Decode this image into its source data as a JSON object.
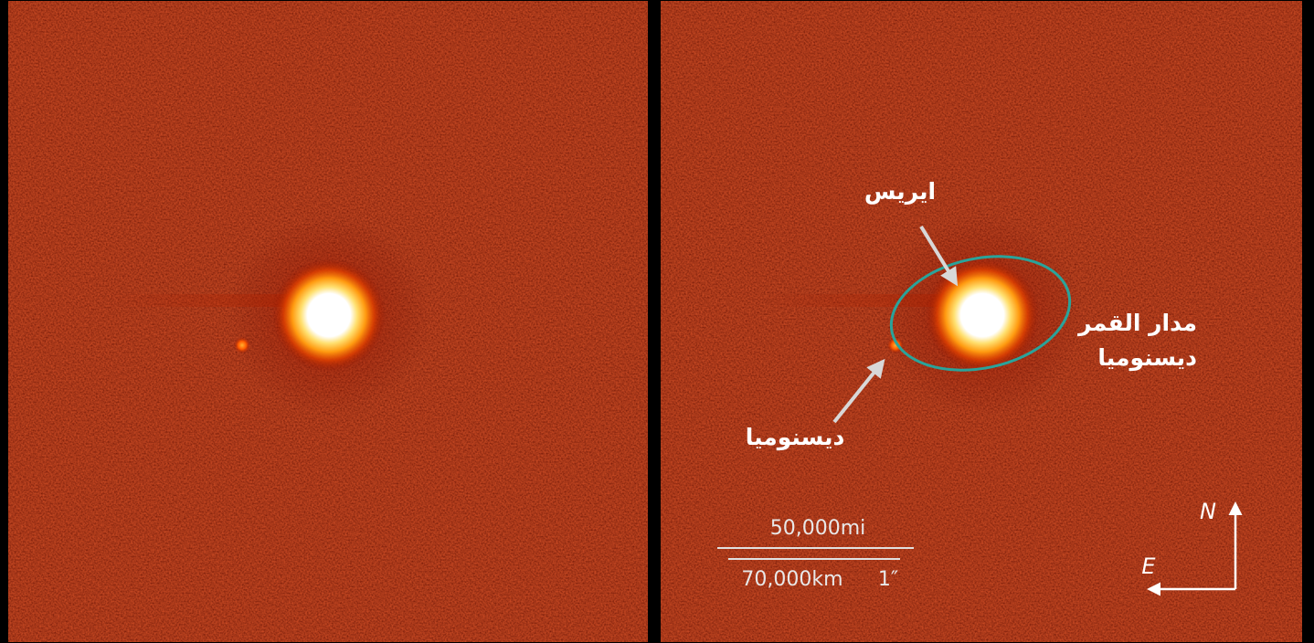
{
  "annotations": {
    "eris": "ايريس",
    "orbit_label": [
      "مدار القمر",
      "ديسنوميا"
    ],
    "dysnomia": "ديسنوميا"
  },
  "scale_bar": {
    "miles": "50,000mi",
    "kilometers": "70,000km",
    "arcsec": "1″"
  },
  "compass": {
    "north": "N",
    "east": "E"
  }
}
